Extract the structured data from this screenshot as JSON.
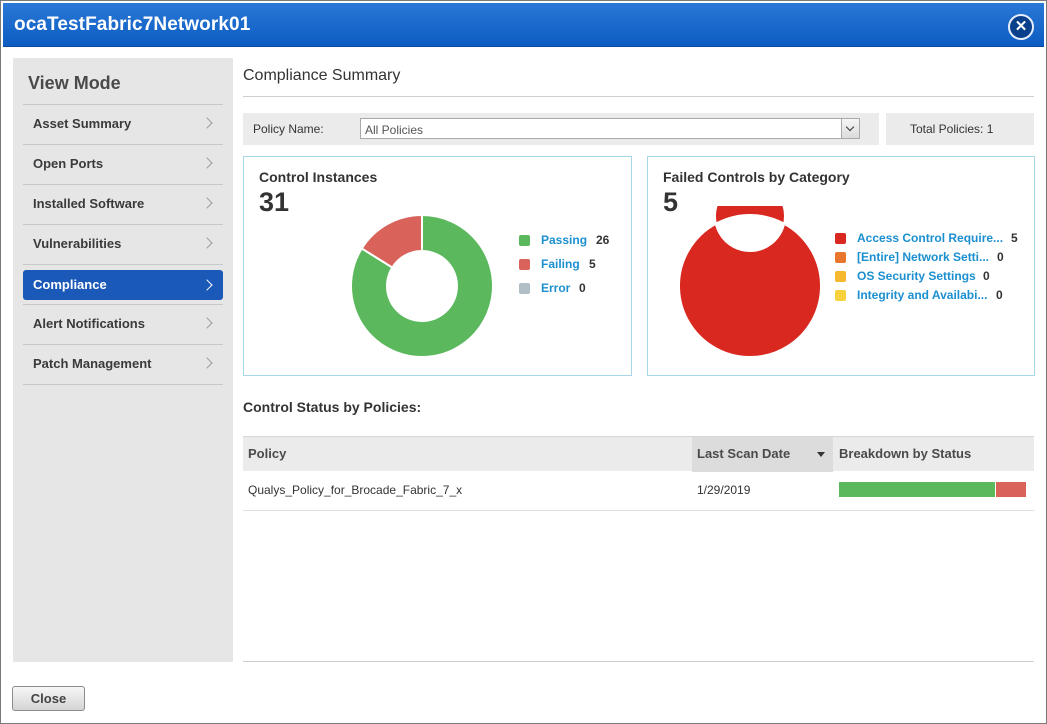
{
  "window": {
    "title": "ocaTestFabric7Network01"
  },
  "sidebar": {
    "heading": "View Mode",
    "items": [
      {
        "label": "Asset Summary"
      },
      {
        "label": "Open Ports"
      },
      {
        "label": "Installed Software"
      },
      {
        "label": "Vulnerabilities"
      },
      {
        "label": "Compliance",
        "active": true
      },
      {
        "label": "Alert Notifications"
      },
      {
        "label": "Patch Management"
      }
    ]
  },
  "main": {
    "title": "Compliance Summary",
    "filter": {
      "label": "Policy Name:",
      "selected": "All Policies"
    },
    "total_policies": "Total Policies: 1",
    "section_title": "Control Status by Policies:"
  },
  "control_instances": {
    "title": "Control Instances",
    "count": "31",
    "legend": [
      {
        "label": "Passing",
        "value": "26",
        "color": "#5cb85c"
      },
      {
        "label": "Failing",
        "value": "5",
        "color": "#d9625a"
      },
      {
        "label": "Error",
        "value": "0",
        "color": "#b0bec5"
      }
    ]
  },
  "failed_controls": {
    "title": "Failed Controls by Category",
    "count": "5",
    "legend": [
      {
        "label": "Access Control Require...",
        "value": "5",
        "color": "#d9281f"
      },
      {
        "label": "[Entire] Network Setti...",
        "value": "0",
        "color": "#e8762d"
      },
      {
        "label": "OS Security Settings",
        "value": "0",
        "color": "#f5b82e"
      },
      {
        "label": "Integrity and Availabi...",
        "value": "0",
        "color": "#f7d23e"
      }
    ]
  },
  "chart_data": [
    {
      "type": "pie",
      "title": "Control Instances",
      "categories": [
        "Passing",
        "Failing",
        "Error"
      ],
      "values": [
        26,
        5,
        0
      ]
    },
    {
      "type": "pie",
      "title": "Failed Controls by Category",
      "categories": [
        "Access Control Require...",
        "[Entire] Network Setti...",
        "OS Security Settings",
        "Integrity and Availabi..."
      ],
      "values": [
        5,
        0,
        0,
        0
      ]
    }
  ],
  "table": {
    "columns": [
      "Policy",
      "Last Scan Date",
      "Breakdown by Status"
    ],
    "rows": [
      {
        "policy": "Qualys_Policy_for_Brocade_Fabric_7_x",
        "last_scan": "1/29/2019",
        "breakdown": {
          "passing": 26,
          "failing": 5,
          "error": 0
        }
      }
    ]
  },
  "footer": {
    "close_label": "Close"
  }
}
